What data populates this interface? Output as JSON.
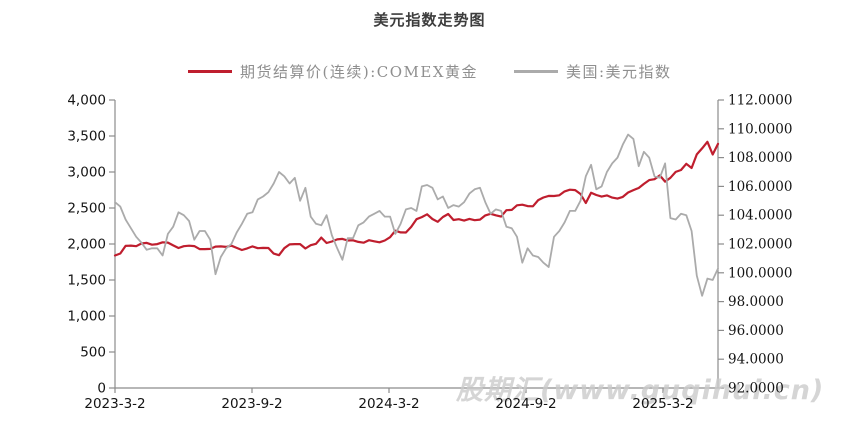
{
  "title": "美元指数走势图",
  "watermark": "股期汇(www.guqihui.cn)",
  "legend": [
    {
      "label": "期货结算价(连续):COMEX黄金",
      "color": "#BF1E2E"
    },
    {
      "label": "美国:美元指数",
      "color": "#ABABAB"
    }
  ],
  "colors": {
    "gold_line": "#BF1E2E",
    "dxy_line": "#ABABAB",
    "axis": "#8C8C8C",
    "tick_text": "#141414",
    "watermark": "#CBCBCB"
  },
  "chart_data": {
    "type": "line",
    "title": "美元指数走势图",
    "legend_position": "top",
    "grid": false,
    "x_tick_labels": [
      "2023-3-2",
      "2023-9-2",
      "2024-3-2",
      "2024-9-2",
      "2025-3-2"
    ],
    "left_axis": {
      "label": "期货结算价(连续):COMEX黄金",
      "min": 0,
      "max": 4000,
      "step": 500,
      "tick_labels": [
        "4,000",
        "3,500",
        "3,000",
        "2,500",
        "2,000",
        "1,500",
        "1,000",
        "500",
        "0"
      ]
    },
    "right_axis": {
      "label": "美国:美元指数",
      "min": 92,
      "max": 112,
      "step": 2,
      "tick_labels": [
        "112.0000",
        "110.0000",
        "108.0000",
        "106.0000",
        "104.0000",
        "102.0000",
        "100.0000",
        "98.0000",
        "96.0000",
        "94.0000",
        "92.0000"
      ]
    },
    "x_range_note": "weekly points from 2023-03-02 to 2025-05-09",
    "series": [
      {
        "name": "期货结算价(连续):COMEX黄金",
        "axis": "left",
        "color": "#BF1E2E",
        "values": [
          1840,
          1868,
          1973,
          1978,
          1969,
          2007,
          2015,
          1990,
          1999,
          2024,
          2019,
          1981,
          1944,
          1969,
          1977,
          1971,
          1929,
          1929,
          1932,
          1964,
          1966,
          1960,
          1976,
          1946,
          1916,
          1939,
          1967,
          1942,
          1946,
          1945,
          1866,
          1845,
          1941,
          1994,
          1998,
          1999,
          1937,
          1984,
          2003,
          2089,
          2014,
          2035,
          2064,
          2071,
          2049,
          2051,
          2029,
          2018,
          2053,
          2038,
          2024,
          2049,
          2095,
          2185,
          2161,
          2160,
          2238,
          2345,
          2374,
          2413,
          2347,
          2308,
          2375,
          2417,
          2334,
          2345,
          2325,
          2349,
          2331,
          2339,
          2397,
          2420,
          2399,
          2381,
          2469,
          2473,
          2537,
          2546,
          2527,
          2524,
          2610,
          2646,
          2668,
          2667,
          2676,
          2730,
          2754,
          2749,
          2694,
          2570,
          2712,
          2681,
          2659,
          2675,
          2645,
          2631,
          2654,
          2715,
          2748,
          2778,
          2835,
          2887,
          2900,
          2953,
          2867,
          2920,
          3001,
          3028,
          3114,
          3056,
          3244,
          3328,
          3419,
          3243,
          3390
        ]
      },
      {
        "name": "美国:美元指数",
        "axis": "right",
        "color": "#ABABAB",
        "values": [
          104.9,
          104.6,
          103.7,
          103.1,
          102.5,
          102.1,
          101.6,
          101.7,
          101.7,
          101.2,
          102.7,
          103.2,
          104.2,
          104.0,
          103.6,
          102.3,
          102.9,
          102.9,
          102.3,
          99.9,
          101.1,
          101.7,
          102.0,
          102.8,
          103.4,
          104.1,
          104.2,
          105.1,
          105.3,
          105.6,
          106.2,
          107.0,
          106.7,
          106.2,
          106.6,
          105.0,
          105.9,
          103.9,
          103.4,
          103.3,
          104.0,
          102.6,
          101.7,
          100.9,
          102.4,
          102.4,
          103.3,
          103.5,
          103.9,
          104.1,
          104.3,
          103.9,
          103.9,
          102.7,
          103.4,
          104.4,
          104.5,
          104.3,
          106.0,
          106.1,
          105.9,
          105.1,
          105.3,
          104.5,
          104.7,
          104.6,
          104.9,
          105.5,
          105.8,
          105.9,
          104.9,
          104.1,
          104.4,
          104.3,
          103.2,
          103.1,
          102.5,
          100.7,
          101.7,
          101.2,
          101.1,
          100.7,
          100.4,
          102.5,
          102.9,
          103.5,
          104.3,
          104.3,
          105.0,
          106.7,
          107.5,
          105.8,
          106.0,
          107.0,
          107.6,
          108.0,
          108.9,
          109.6,
          109.3,
          107.4,
          108.4,
          108.0,
          106.7,
          106.6,
          107.6,
          103.8,
          103.7,
          104.1,
          104.0,
          102.9,
          99.8,
          98.4,
          99.6,
          99.5,
          100.3
        ]
      }
    ]
  }
}
